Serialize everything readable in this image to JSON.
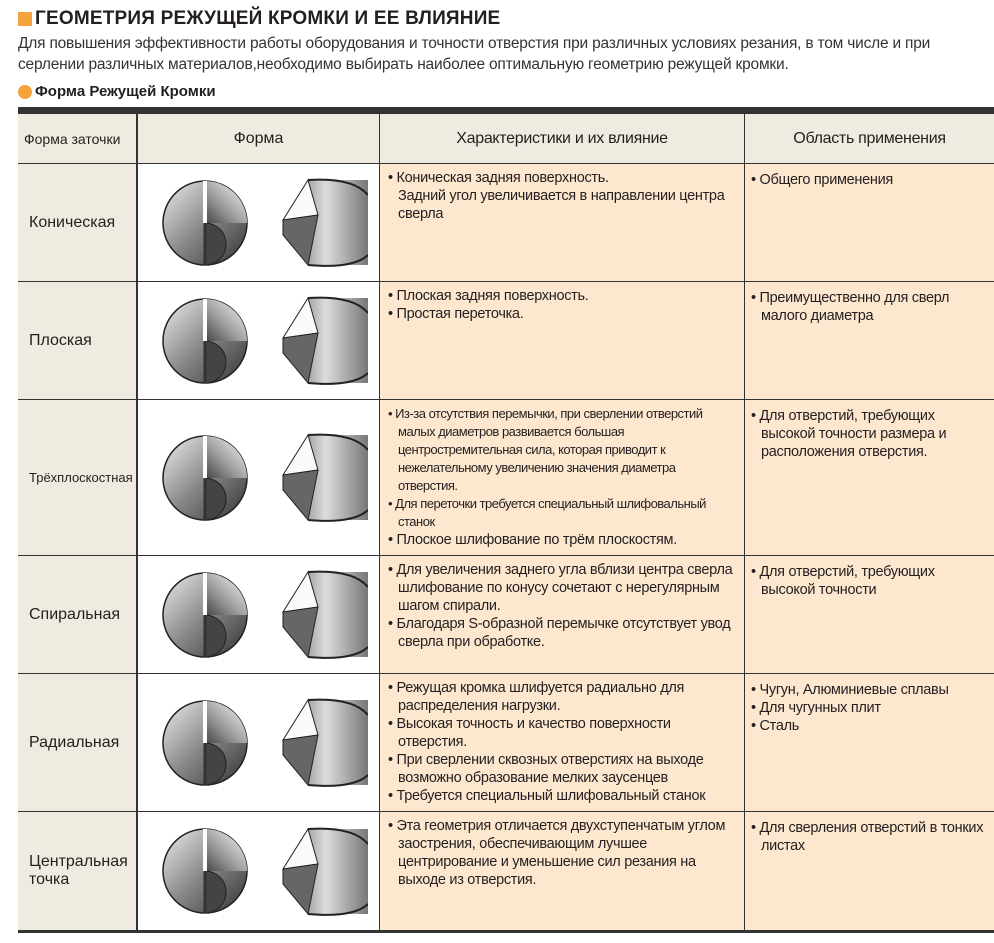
{
  "title": "ГЕОМЕТРИЯ РЕЖУЩЕЙ КРОМКИ И ЕЕ ВЛИЯНИЕ",
  "intro": "Для повышения эффективности работы оборудования и точности отверстия при различных условиях резания, в том числе и при серлении различных материалов,необходимо выбирать наиболее оптимальную геометрию режущей кромки.",
  "subtitle": "Форма Режущей Кромки",
  "accent": "#f7a33c",
  "headers": [
    "Форма заточки",
    "Форма",
    "Характеристики и их влияние",
    "Область применения"
  ],
  "rows": [
    {
      "name": "Коническая",
      "chars": [
        "• Коническая задняя поверхность.",
        "Задний угол увеличивается в направлении центра сверла"
      ],
      "apps": [
        "• Общего применения"
      ]
    },
    {
      "name": "Плоская",
      "chars": [
        "• Плоская задняя поверхность.",
        "• Простая переточка."
      ],
      "apps": [
        "• Преимущественно для сверл малого диаметра"
      ]
    },
    {
      "name": "Трёхплоскостная",
      "chars": [
        "• Из-за отсутствия перемычки, при сверлении отверстий малых диаметров развивается большая центростремительная сила, которая приводит к нежелательному увеличению значения диаметра отверстия.",
        "• Для переточки требуется специальный шлифовальный станок",
        "• Плоское шлифование по трём плоскостям."
      ],
      "apps": [
        "• Для отверстий, требующих высокой точности размера и расположения отверстия."
      ]
    },
    {
      "name": "Спиральная",
      "chars": [
        "• Для увеличения заднего угла вблизи центра сверла шлифование по конусу сочетают с нерегулярным шагом спирали.",
        "• Благодаря S-образной перемычке отсутствует увод сверла при обработке."
      ],
      "apps": [
        "• Для отверстий, требующих высокой точности"
      ]
    },
    {
      "name": "Радиальная",
      "chars": [
        "• Режущая кромка шлифуется радиально для распределения нагрузки.",
        "• Высокая точность и качество поверхности отверстия.",
        "• При сверлении сквозных отверстиях на выходе возможно образование мелких заусенцев",
        "• Требуется специальный шлифовальный станок"
      ],
      "apps": [
        "• Чугун, Алюминиевые сплавы",
        "• Для чугунных плит",
        "• Сталь"
      ]
    },
    {
      "name": "Центральная точка",
      "chars": [
        "• Эта геометрия отличается двухступенчатым углом заострения, обеспечивающим лучшее центрирование и уменьшение сил резания на выходе из отверстия."
      ],
      "apps": [
        "• Для сверления отверстий в тонких листах"
      ]
    }
  ]
}
